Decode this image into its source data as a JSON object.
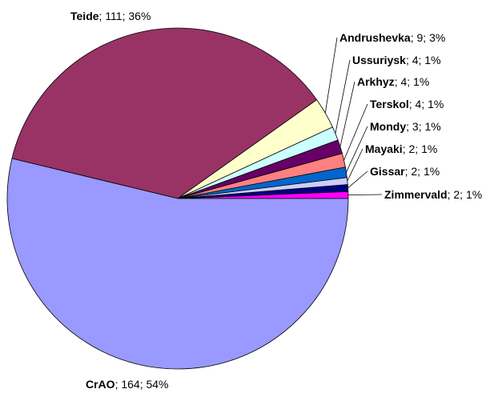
{
  "chart_data": {
    "type": "pie",
    "categories": [
      "Zimmervald",
      "Gissar",
      "Mayaki",
      "Mondy",
      "Terskol",
      "Arkhyz",
      "Ussuriysk",
      "Andrushevka",
      "Teide",
      "CrAO"
    ],
    "values": [
      2,
      2,
      2,
      3,
      4,
      4,
      4,
      9,
      111,
      164
    ],
    "percent_labels": [
      "1%",
      "1%",
      "1%",
      "1%",
      "1%",
      "1%",
      "1%",
      "3%",
      "36%",
      "54%"
    ],
    "separator": "; ",
    "colors": [
      "#ff00ff",
      "#000080",
      "#ccccff",
      "#0066cc",
      "#ff8080",
      "#660066",
      "#ccffff",
      "#ffffcc",
      "#993366",
      "#9999ff"
    ]
  }
}
